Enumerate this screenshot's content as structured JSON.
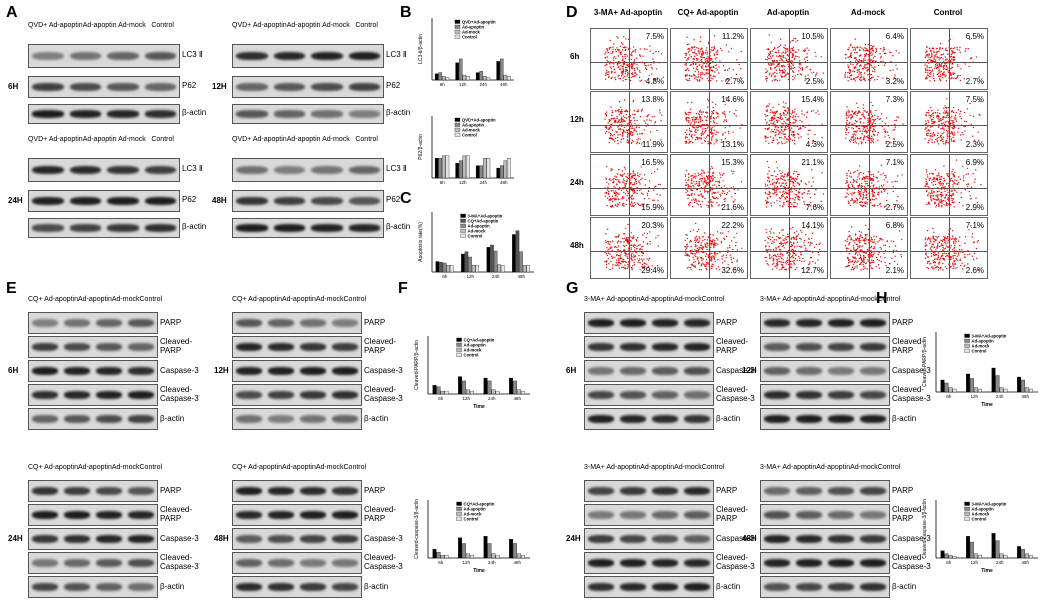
{
  "panels": {
    "A": "A",
    "B": "B",
    "C": "C",
    "D": "D",
    "E": "E",
    "F": "F",
    "G": "G",
    "H": "H"
  },
  "A": {
    "lanes": [
      "QVD+ Ad-apoptin",
      "Ad-apoptin",
      "Ad-mock",
      "Control"
    ],
    "rows": [
      "LC3 Ⅱ",
      "P62",
      "β-actin"
    ],
    "times": [
      "6H",
      "12H",
      "24H",
      "48H"
    ]
  },
  "E": {
    "lanes": [
      "CQ+ Ad-apoptin",
      "Ad-apoptin",
      "Ad-mock",
      "Control"
    ],
    "rows": [
      "PARP",
      "Cleaved-PARP",
      "Caspase-3",
      "Cleaved-Caspase-3",
      "β-actin"
    ],
    "times": [
      "6H",
      "12H",
      "24H",
      "48H"
    ]
  },
  "G": {
    "lanes": [
      "3-MA+ Ad-apoptin",
      "Ad-apoptin",
      "Ad-mock",
      "Control"
    ],
    "rows": [
      "PARP",
      "Cleaved-PARP",
      "Caspase-3",
      "Cleaved-Caspase-3",
      "β-actin"
    ],
    "times": [
      "6H",
      "12H",
      "24H",
      "48H"
    ]
  },
  "D": {
    "columns": [
      "3-MA+ Ad-apoptin",
      "CQ+ Ad-apoptin",
      "Ad-apoptin",
      "Ad-mock",
      "Control"
    ],
    "times": [
      "6h",
      "12h",
      "24h",
      "48h"
    ],
    "upper": [
      [
        "7.5%",
        "11.2%",
        "10.5%",
        "6.4%",
        "6.5%"
      ],
      [
        "13.8%",
        "14.6%",
        "15.4%",
        "7.3%",
        "7.5%"
      ],
      [
        "16.5%",
        "15.3%",
        "21.1%",
        "7.1%",
        "6.9%"
      ],
      [
        "20.3%",
        "22.2%",
        "14.1%",
        "6.8%",
        "7.1%"
      ]
    ],
    "lower": [
      [
        "4.8%",
        "2.7%",
        "2.5%",
        "3.2%",
        "2.7%"
      ],
      [
        "11.9%",
        "13.1%",
        "4.3%",
        "2.5%",
        "2.3%"
      ],
      [
        "15.9%",
        "21.6%",
        "7.6%",
        "2.7%",
        "2.9%"
      ],
      [
        "29.4%",
        "32.6%",
        "12.7%",
        "2.1%",
        "2.6%"
      ]
    ],
    "dot_color": "#e01010"
  },
  "chart_data": [
    {
      "type": "bar",
      "panel": "B-top",
      "ylabel": "LC3-Ⅱ/β-actin",
      "xlabel": "",
      "categories": [
        "6h",
        "12h",
        "24h",
        "48h"
      ],
      "series": [
        {
          "name": "QVD+Ad-apoptin",
          "values": [
            0.5,
            1.4,
            0.6,
            1.5
          ]
        },
        {
          "name": "Ad-apoptin",
          "values": [
            0.6,
            1.7,
            0.7,
            1.7
          ]
        },
        {
          "name": "Ad-mock",
          "values": [
            0.3,
            0.4,
            0.3,
            0.4
          ]
        },
        {
          "name": "Control",
          "values": [
            0.2,
            0.3,
            0.2,
            0.3
          ]
        }
      ],
      "ylim": [
        0,
        5
      ],
      "colors": [
        "#000000",
        "#888888",
        "#bbbbbb",
        "#e5e5e5"
      ]
    },
    {
      "type": "bar",
      "panel": "B-bottom",
      "ylabel": "P62/β-actin",
      "xlabel": "",
      "categories": [
        "6h",
        "12h",
        "24h",
        "48h"
      ],
      "series": [
        {
          "name": "QVD+Ad-apoptin",
          "values": [
            0.8,
            0.6,
            0.5,
            0.4
          ]
        },
        {
          "name": "Ad-apoptin",
          "values": [
            0.8,
            0.7,
            0.5,
            0.5
          ]
        },
        {
          "name": "Ad-mock",
          "values": [
            0.9,
            0.9,
            0.8,
            0.7
          ]
        },
        {
          "name": "Control",
          "values": [
            0.9,
            0.9,
            0.8,
            0.8
          ]
        }
      ],
      "ylim": [
        0,
        2.5
      ],
      "colors": [
        "#000000",
        "#888888",
        "#bbbbbb",
        "#e5e5e5"
      ]
    },
    {
      "type": "bar",
      "panel": "C",
      "ylabel": "Apoptosis rate(%)",
      "xlabel": "",
      "categories": [
        "6h",
        "12h",
        "24h",
        "48h"
      ],
      "series": [
        {
          "name": "3-MA+Ad-apoptin",
          "values": [
            14,
            24,
            33,
            50
          ]
        },
        {
          "name": "CQ+Ad-apoptin",
          "values": [
            13,
            27,
            36,
            55
          ]
        },
        {
          "name": "Ad-apoptin",
          "values": [
            12,
            20,
            28,
            27
          ]
        },
        {
          "name": "Ad-mock",
          "values": [
            9,
            9,
            10,
            9
          ]
        },
        {
          "name": "Control",
          "values": [
            9,
            9,
            9,
            9
          ]
        }
      ],
      "ylim": [
        0,
        80
      ],
      "colors": [
        "#000000",
        "#555555",
        "#888888",
        "#bbbbbb",
        "#e5e5e5"
      ]
    },
    {
      "type": "bar",
      "panel": "F-top",
      "ylabel": "Cleaved-PARP/β-actin",
      "xlabel": "Time",
      "categories": [
        "6h",
        "12h",
        "24h",
        "48h"
      ],
      "series": [
        {
          "name": "CQ+Ad-apoptin",
          "values": [
            0.6,
            1.2,
            1.1,
            1.1
          ]
        },
        {
          "name": "Ad-apoptin",
          "values": [
            0.5,
            0.9,
            0.9,
            0.9
          ]
        },
        {
          "name": "Ad-mock",
          "values": [
            0.2,
            0.3,
            0.3,
            0.3
          ]
        },
        {
          "name": "Control",
          "values": [
            0.2,
            0.2,
            0.2,
            0.2
          ]
        }
      ],
      "ylim": [
        0,
        4
      ],
      "colors": [
        "#000000",
        "#888888",
        "#bbbbbb",
        "#e5e5e5"
      ]
    },
    {
      "type": "bar",
      "panel": "F-bottom",
      "ylabel": "Cleaved-caspase-3/β-actin",
      "xlabel": "Time",
      "categories": [
        "6h",
        "12h",
        "24h",
        "48h"
      ],
      "series": [
        {
          "name": "CQ+Ad-apoptin",
          "values": [
            0.6,
            1.4,
            1.5,
            1.3
          ]
        },
        {
          "name": "Ad-apoptin",
          "values": [
            0.4,
            1.0,
            1.0,
            1.0
          ]
        },
        {
          "name": "Ad-mock",
          "values": [
            0.2,
            0.3,
            0.3,
            0.3
          ]
        },
        {
          "name": "Control",
          "values": [
            0.2,
            0.2,
            0.2,
            0.2
          ]
        }
      ],
      "ylim": [
        0,
        4
      ],
      "colors": [
        "#000000",
        "#888888",
        "#bbbbbb",
        "#e5e5e5"
      ]
    },
    {
      "type": "bar",
      "panel": "H-top",
      "ylabel": "Cleaved-PARP/β-actin",
      "xlabel": "Time",
      "categories": [
        "6h",
        "12h",
        "24h",
        "48h"
      ],
      "series": [
        {
          "name": "3-MA+Ad-apoptin",
          "values": [
            0.8,
            1.2,
            1.6,
            1.0
          ]
        },
        {
          "name": "Ad-apoptin",
          "values": [
            0.6,
            0.9,
            1.1,
            0.8
          ]
        },
        {
          "name": "Ad-mock",
          "values": [
            0.3,
            0.3,
            0.3,
            0.3
          ]
        },
        {
          "name": "Control",
          "values": [
            0.2,
            0.2,
            0.2,
            0.2
          ]
        }
      ],
      "ylim": [
        0,
        4
      ],
      "colors": [
        "#000000",
        "#888888",
        "#bbbbbb",
        "#e5e5e5"
      ]
    },
    {
      "type": "bar",
      "panel": "H-bottom",
      "ylabel": "Cleaved-caspase-3/β-actin",
      "xlabel": "Time",
      "categories": [
        "6h",
        "12h",
        "24h",
        "48h"
      ],
      "series": [
        {
          "name": "3-MA+Ad-apoptin",
          "values": [
            0.5,
            1.5,
            1.7,
            0.8
          ]
        },
        {
          "name": "Ad-apoptin",
          "values": [
            0.3,
            1.1,
            1.2,
            0.6
          ]
        },
        {
          "name": "Ad-mock",
          "values": [
            0.2,
            0.3,
            0.3,
            0.3
          ]
        },
        {
          "name": "Control",
          "values": [
            0.1,
            0.2,
            0.2,
            0.2
          ]
        }
      ],
      "ylim": [
        0,
        4
      ],
      "colors": [
        "#000000",
        "#888888",
        "#bbbbbb",
        "#e5e5e5"
      ]
    }
  ]
}
